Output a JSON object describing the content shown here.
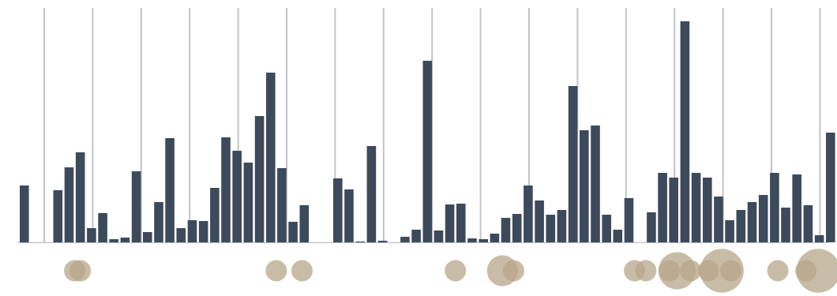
{
  "chart_data": {
    "type": "bar",
    "grid": {
      "vertical_lines": true,
      "horizontal_lines": false
    },
    "colors": {
      "bar": "#3d4a5b",
      "bubble": "#b7a588",
      "grid": "#c2c3c8",
      "baseline": "#b9b9bf"
    },
    "ylim": [
      0,
      281
    ],
    "series": [
      {
        "values": [
          72,
          0,
          0,
          66,
          95,
          114,
          18,
          37,
          4,
          6,
          90,
          13,
          51,
          132,
          18,
          28,
          27,
          69,
          133,
          116,
          101,
          160,
          215,
          94,
          26,
          47,
          0,
          0,
          81,
          67,
          1,
          122,
          2,
          0,
          7,
          16,
          230,
          15,
          48,
          49,
          5,
          4,
          11,
          31,
          36,
          72,
          53,
          35,
          41,
          198,
          142,
          148,
          35,
          16,
          56,
          0,
          38,
          88,
          82,
          280,
          88,
          82,
          58,
          28,
          41,
          51,
          60,
          88,
          44,
          86,
          47,
          9,
          139
        ]
      }
    ],
    "bubbles": [
      {
        "index": 4.5,
        "size": 1.0
      },
      {
        "index": 5.0,
        "size": 1.0
      },
      {
        "index": 22.5,
        "size": 1.0
      },
      {
        "index": 24.8,
        "size": 1.0
      },
      {
        "index": 38.5,
        "size": 1.0
      },
      {
        "index": 42.7,
        "size": 1.45
      },
      {
        "index": 43.7,
        "size": 1.0
      },
      {
        "index": 54.5,
        "size": 1.0
      },
      {
        "index": 55.5,
        "size": 1.0
      },
      {
        "index": 57.6,
        "size": 1.0
      },
      {
        "index": 58.3,
        "size": 1.75
      },
      {
        "index": 59.5,
        "size": 1.0
      },
      {
        "index": 61.1,
        "size": 1.0
      },
      {
        "index": 62.3,
        "size": 2.05
      },
      {
        "index": 63.1,
        "size": 1.0
      },
      {
        "index": 67.3,
        "size": 1.0
      },
      {
        "index": 69.8,
        "size": 1.0
      },
      {
        "index": 70.9,
        "size": 2.05
      }
    ]
  }
}
